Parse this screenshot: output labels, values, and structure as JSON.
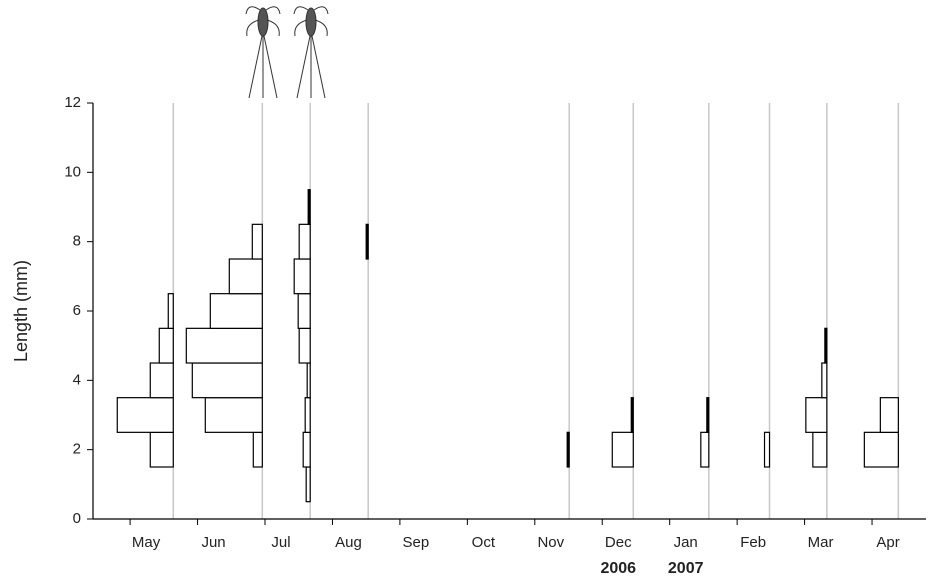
{
  "chart_data": {
    "type": "bar",
    "y_label": "Length (mm)",
    "ylim": [
      0,
      12
    ],
    "yticks": [
      0,
      2,
      4,
      6,
      8,
      10,
      12
    ],
    "xlim": [
      -0.55,
      11.8
    ],
    "xticks": [
      {
        "value": 0,
        "label": "May"
      },
      {
        "value": 1,
        "label": "Jun"
      },
      {
        "value": 2,
        "label": "Jul"
      },
      {
        "value": 3,
        "label": "Aug"
      },
      {
        "value": 4,
        "label": "Sep"
      },
      {
        "value": 5,
        "label": "Oct"
      },
      {
        "value": 6,
        "label": "Nov"
      },
      {
        "value": 7,
        "label": "Dec"
      },
      {
        "value": 8,
        "label": "Jan"
      },
      {
        "value": 9,
        "label": "Feb"
      },
      {
        "value": 10,
        "label": "Mar"
      },
      {
        "value": 11,
        "label": "Apr"
      }
    ],
    "year_labels": [
      {
        "value": 7,
        "label": "2006"
      },
      {
        "value": 8,
        "label": "2007"
      }
    ],
    "class_width": 1,
    "line_color": "#c8c8c8",
    "bar_color": "#000000",
    "samples": [
      {
        "x": 0.64,
        "classes": [
          2,
          3,
          4,
          5,
          6
        ],
        "values": [
          23,
          56,
          23,
          14,
          5
        ]
      },
      {
        "x": 1.96,
        "classes": [
          2,
          3,
          4,
          5,
          6,
          7,
          8
        ],
        "values": [
          9,
          57,
          70,
          76,
          52,
          33,
          10
        ]
      },
      {
        "x": 2.67,
        "classes": [
          1,
          2,
          3,
          4,
          5,
          6,
          7,
          8,
          9
        ],
        "values": [
          4,
          7,
          5,
          3,
          11,
          12,
          16,
          11,
          2
        ]
      },
      {
        "x": 3.53,
        "classes": [
          8
        ],
        "values": [
          2
        ]
      },
      {
        "x": 6.51,
        "classes": [
          2
        ],
        "values": [
          2
        ]
      },
      {
        "x": 7.46,
        "classes": [
          2,
          3
        ],
        "values": [
          21,
          2
        ]
      },
      {
        "x": 8.58,
        "classes": [
          2,
          3
        ],
        "values": [
          8,
          2
        ]
      },
      {
        "x": 9.48,
        "classes": [
          2
        ],
        "values": [
          5
        ]
      },
      {
        "x": 10.33,
        "classes": [
          2,
          3,
          4,
          5
        ],
        "values": [
          14,
          21,
          5,
          2
        ]
      },
      {
        "x": 11.39,
        "classes": [
          2,
          3
        ],
        "values": [
          34,
          18
        ]
      }
    ]
  }
}
